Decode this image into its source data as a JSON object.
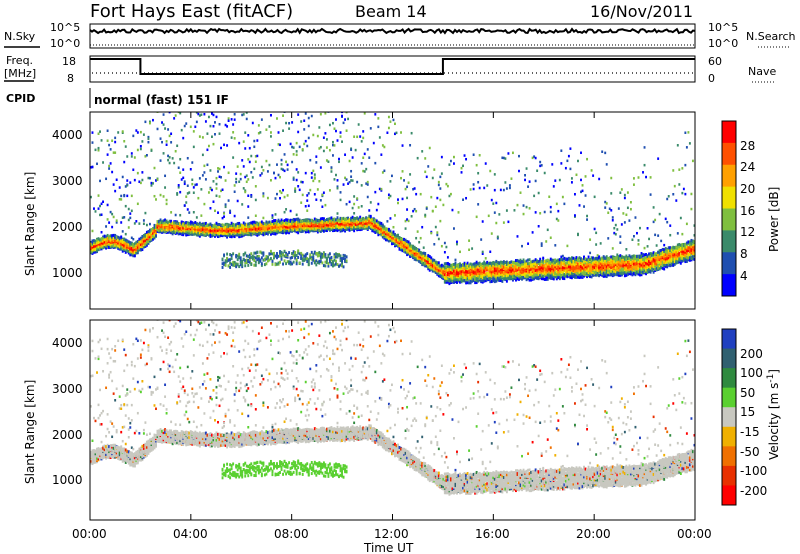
{
  "header": {
    "station": "Fort Hays East (fitACF)",
    "beam": "Beam 14",
    "date": "16/Nov/2011"
  },
  "noise_panel": {
    "left_label": "N.Sky",
    "left_ticks": [
      "10^5",
      "10^0"
    ],
    "right_ticks": [
      "10^5",
      "10^0"
    ],
    "right_label": "N.Search"
  },
  "freq_panel": {
    "left_label_1": "Freq.",
    "left_label_2": "[MHz]",
    "left_ticks": [
      "18",
      "8"
    ],
    "right_ticks": [
      "60",
      "0"
    ],
    "right_label": "Nave"
  },
  "cpid": {
    "label": "CPID",
    "mode": "normal (fast) 151 IF"
  },
  "x_axis": {
    "label": "Time UT",
    "ticks": [
      "00:00",
      "04:00",
      "08:00",
      "12:00",
      "16:00",
      "20:00",
      "00:00"
    ]
  },
  "power_panel": {
    "ylabel": "Slant Range [km]",
    "yticks": [
      "4000",
      "3000",
      "2000",
      "1000"
    ],
    "colorbar_label": "Power [dB]",
    "colorbar_ticks": [
      "28",
      "24",
      "20",
      "16",
      "12",
      "8",
      "4"
    ],
    "colors": [
      "#0000ff",
      "#1f4fb0",
      "#3a8a6a",
      "#7fbf3f",
      "#f0e000",
      "#ffa000",
      "#ff5000",
      "#ff0000"
    ]
  },
  "velocity_panel": {
    "ylabel": "Slant Range [km]",
    "yticks": [
      "4000",
      "3000",
      "2000",
      "1000"
    ],
    "colorbar_label": "Velocity [m s",
    "colorbar_label_exp": "-1",
    "colorbar_label_end": "]",
    "colorbar_ticks": [
      "200",
      "100",
      "50",
      "15",
      "-15",
      "-50",
      "-100",
      "-200"
    ],
    "colors": [
      "#2040c0",
      "#306070",
      "#2f8a3f",
      "#5ad030",
      "#c8c8c0",
      "#f0b000",
      "#f07000",
      "#e83000",
      "#ff0000"
    ]
  },
  "chart_data": {
    "type": "heatmap",
    "x_range_hours": [
      0,
      24
    ],
    "y_range_km": [
      180,
      4500
    ],
    "frequency_mhz_steps": [
      {
        "t": 0,
        "f": 18
      },
      {
        "t": 2.0,
        "f": 10.5
      },
      {
        "t": 14.0,
        "f": 18
      },
      {
        "t": 24,
        "f": 18
      }
    ],
    "nave_level": 3
  }
}
